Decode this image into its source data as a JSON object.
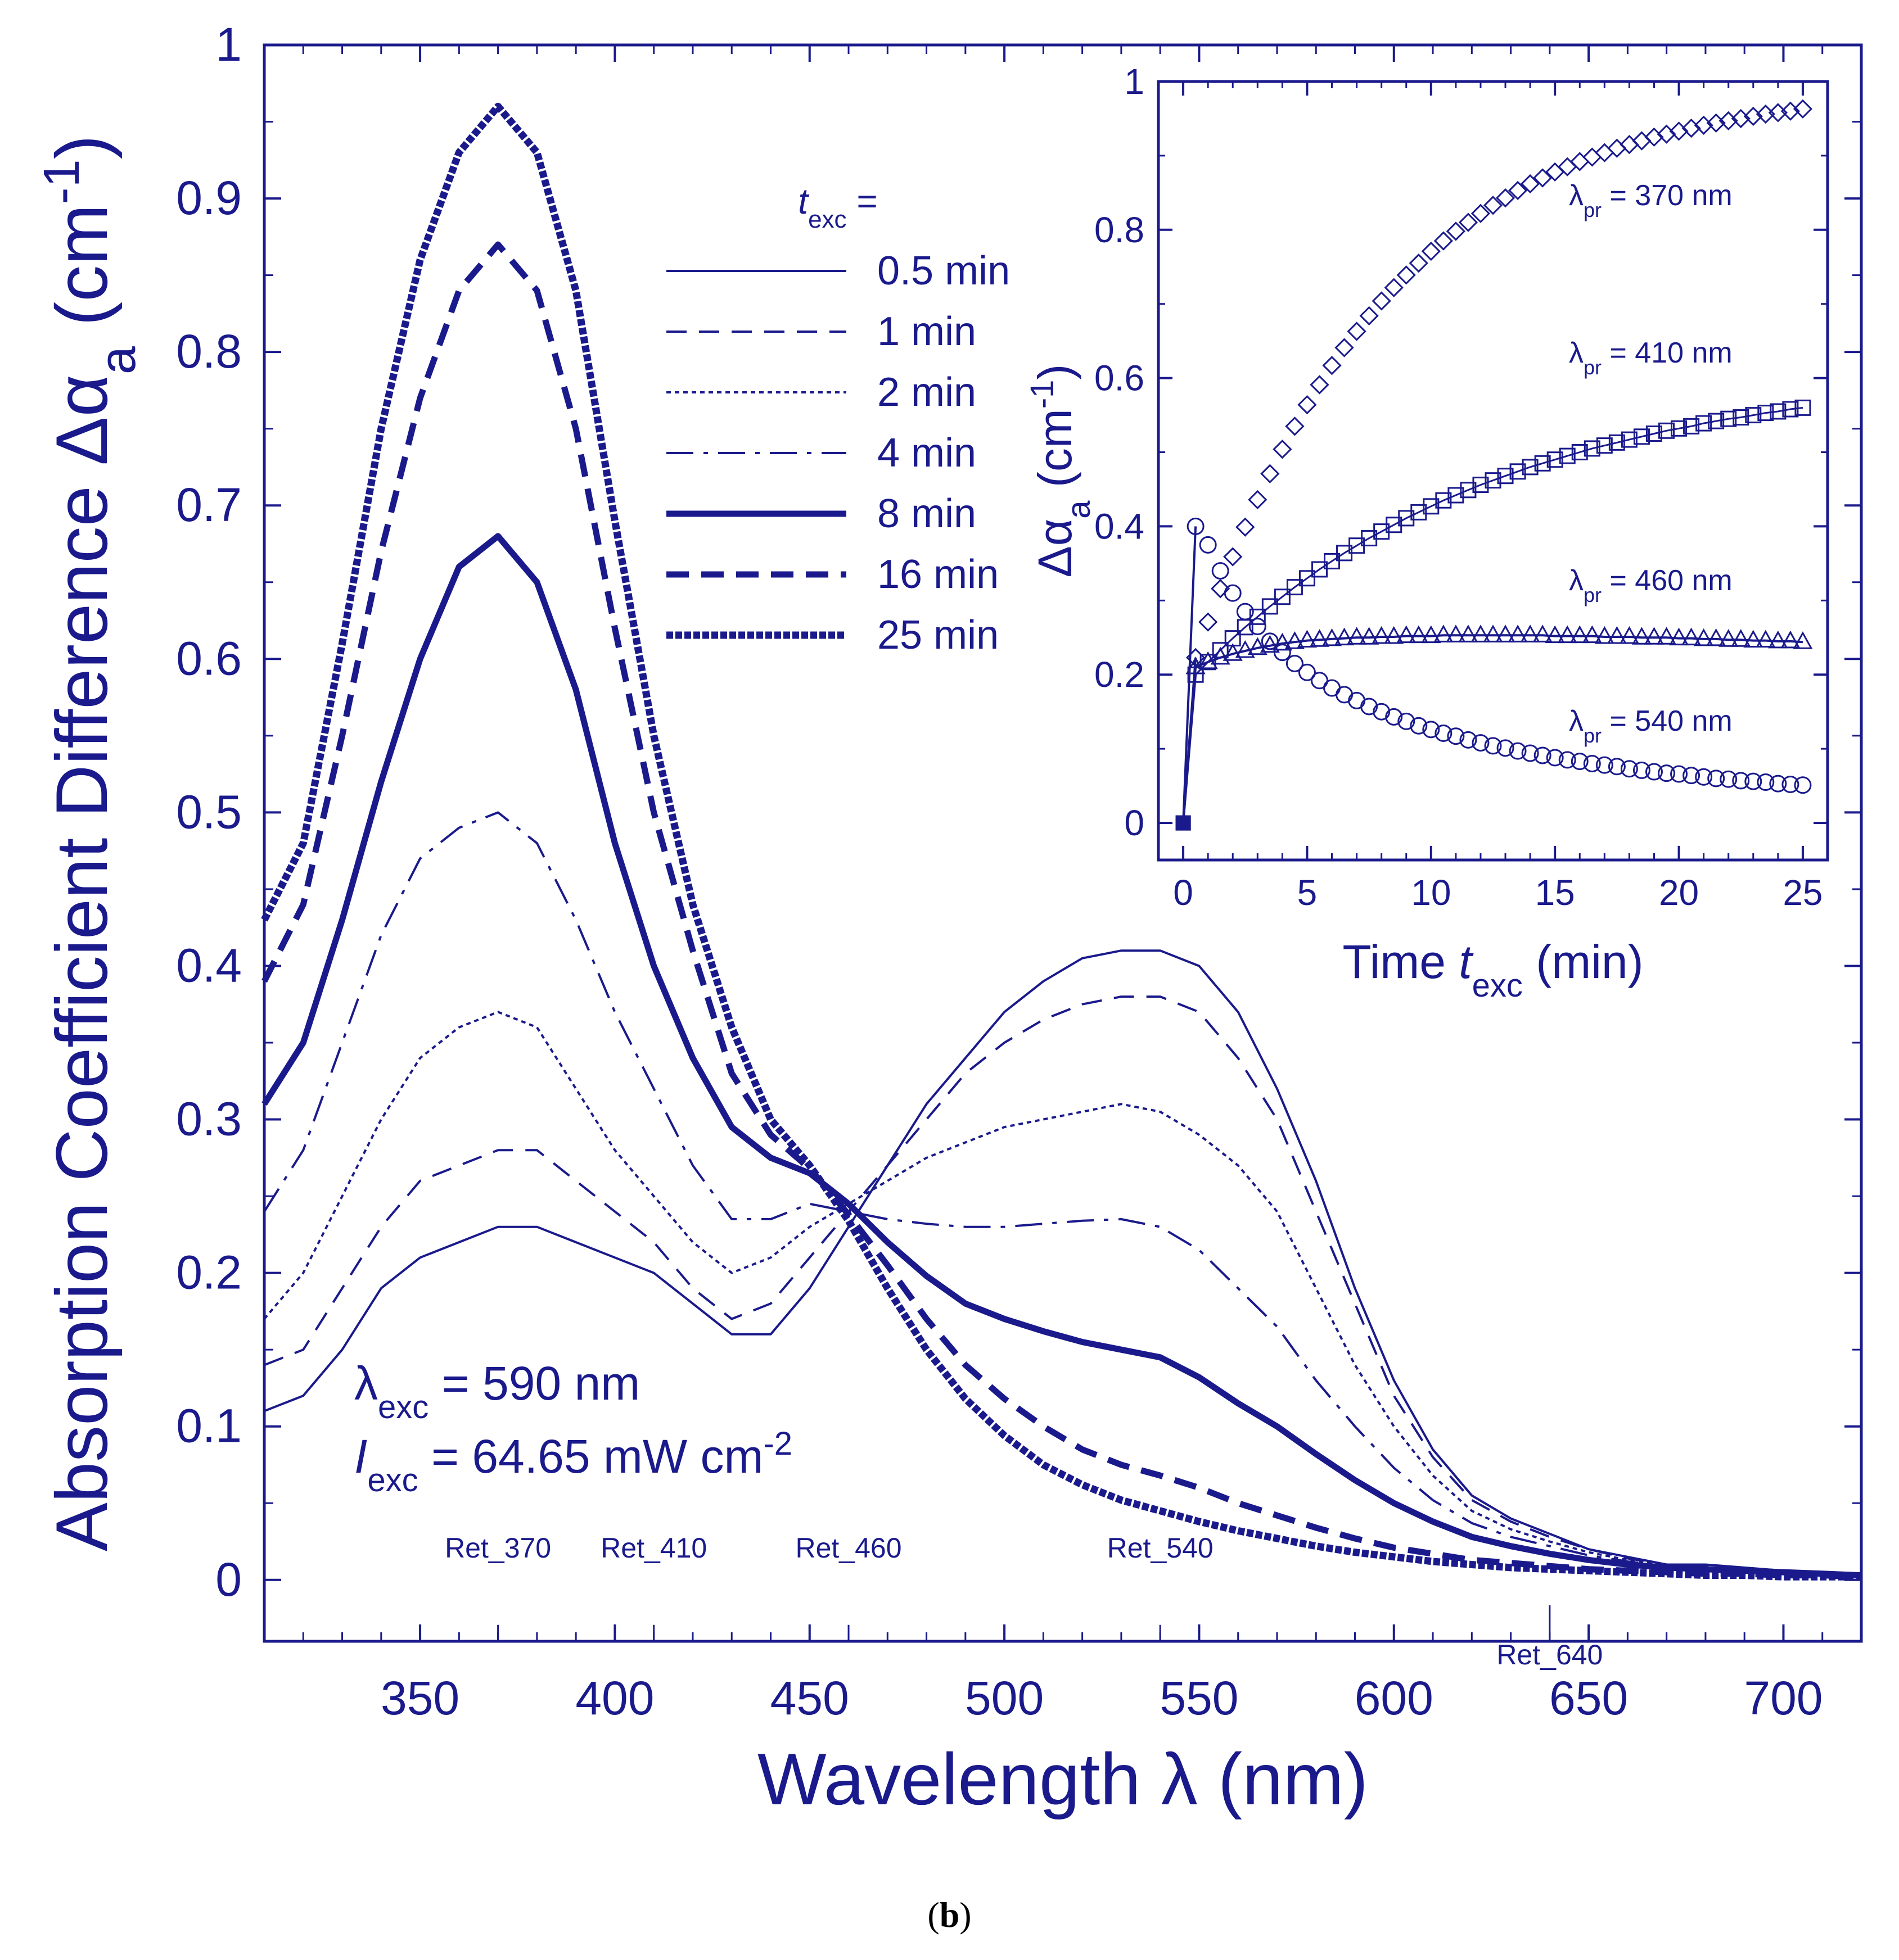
{
  "caption": {
    "open": "(",
    "letter": "b",
    "close": ")"
  },
  "colors": {
    "line": "#1a1a8c",
    "background": "#ffffff"
  },
  "chart_data": [
    {
      "type": "line",
      "id": "main",
      "xlabel": "Wavelength λ (nm)",
      "xlabel_parts": {
        "text": "Wavelength ",
        "symbol": "λ",
        "unit": " (nm)"
      },
      "ylabel": "Absorption Coefficient Difference Δα_a (cm^-1)",
      "ylabel_parts": {
        "text": "Absorption Coefficient Difference ",
        "symbol": "Δα",
        "sub": "a",
        "unit_open": " (cm",
        "sup": "-1",
        "unit_close": ")"
      },
      "xlim": [
        310,
        720
      ],
      "ylim": [
        -0.04,
        1.0
      ],
      "xticks": [
        350,
        400,
        450,
        500,
        550,
        600,
        650,
        700
      ],
      "yticks": [
        0,
        0.1,
        0.2,
        0.3,
        0.4,
        0.5,
        0.6,
        0.7,
        0.8,
        0.9,
        1
      ],
      "ytick_labels": [
        "0",
        "0.1",
        "0.2",
        "0.3",
        "0.4",
        "0.5",
        "0.6",
        "0.7",
        "0.8",
        "0.9",
        "1"
      ],
      "grid": false,
      "legend": {
        "title_symbol": "t",
        "title_sub": "exc",
        "title_eq": " =",
        "placement": "top-center"
      },
      "markers": [
        {
          "label": "Ret_370",
          "x": 370
        },
        {
          "label": "Ret_410",
          "x": 410
        },
        {
          "label": "Ret_460",
          "x": 460
        },
        {
          "label": "Ret_540",
          "x": 540
        },
        {
          "label": "Ret_640",
          "x": 640
        }
      ],
      "annotations": {
        "lambda_exc": {
          "symbol": "λ",
          "sub": "exc",
          "value": " = 590 nm"
        },
        "intensity_exc": {
          "symbol": "I",
          "sub": "exc",
          "value": " = 64.65 mW cm",
          "sup": "-2"
        }
      },
      "x": [
        310,
        320,
        330,
        340,
        350,
        360,
        370,
        380,
        390,
        400,
        410,
        420,
        430,
        440,
        450,
        460,
        470,
        480,
        490,
        500,
        510,
        520,
        530,
        540,
        550,
        560,
        570,
        580,
        590,
        600,
        610,
        620,
        630,
        640,
        650,
        660,
        670,
        680,
        690,
        700,
        710,
        720
      ],
      "series": [
        {
          "name": "0.5 min",
          "style": "thin-solid",
          "values": [
            0.11,
            0.12,
            0.15,
            0.19,
            0.21,
            0.22,
            0.23,
            0.23,
            0.22,
            0.21,
            0.2,
            0.18,
            0.16,
            0.16,
            0.19,
            0.23,
            0.27,
            0.31,
            0.34,
            0.37,
            0.39,
            0.405,
            0.41,
            0.41,
            0.4,
            0.37,
            0.32,
            0.26,
            0.19,
            0.13,
            0.085,
            0.055,
            0.04,
            0.03,
            0.02,
            0.015,
            0.01,
            0.01,
            0.008,
            0.006,
            0.005,
            0.004
          ]
        },
        {
          "name": "1 min",
          "style": "thin-dash",
          "values": [
            0.14,
            0.15,
            0.19,
            0.23,
            0.26,
            0.27,
            0.28,
            0.28,
            0.26,
            0.24,
            0.22,
            0.19,
            0.17,
            0.18,
            0.21,
            0.24,
            0.27,
            0.3,
            0.33,
            0.35,
            0.365,
            0.375,
            0.38,
            0.38,
            0.37,
            0.34,
            0.3,
            0.24,
            0.18,
            0.12,
            0.08,
            0.052,
            0.038,
            0.028,
            0.02,
            0.014,
            0.01,
            0.009,
            0.007,
            0.006,
            0.005,
            0.004
          ]
        },
        {
          "name": "2 min",
          "style": "thin-dot",
          "values": [
            0.17,
            0.2,
            0.25,
            0.3,
            0.34,
            0.36,
            0.37,
            0.36,
            0.32,
            0.28,
            0.25,
            0.22,
            0.2,
            0.21,
            0.23,
            0.245,
            0.26,
            0.275,
            0.285,
            0.295,
            0.3,
            0.305,
            0.31,
            0.305,
            0.29,
            0.27,
            0.24,
            0.19,
            0.14,
            0.1,
            0.068,
            0.045,
            0.033,
            0.025,
            0.018,
            0.013,
            0.01,
            0.008,
            0.007,
            0.006,
            0.005,
            0.004
          ]
        },
        {
          "name": "4 min",
          "style": "thin-dashdot",
          "values": [
            0.24,
            0.28,
            0.35,
            0.42,
            0.47,
            0.49,
            0.5,
            0.48,
            0.43,
            0.37,
            0.32,
            0.27,
            0.235,
            0.235,
            0.245,
            0.24,
            0.235,
            0.232,
            0.23,
            0.23,
            0.232,
            0.234,
            0.235,
            0.23,
            0.215,
            0.19,
            0.165,
            0.13,
            0.1,
            0.073,
            0.052,
            0.037,
            0.028,
            0.022,
            0.016,
            0.012,
            0.009,
            0.008,
            0.007,
            0.006,
            0.005,
            0.004
          ]
        },
        {
          "name": "8 min",
          "style": "thick-solid",
          "values": [
            0.31,
            0.35,
            0.43,
            0.52,
            0.6,
            0.66,
            0.68,
            0.65,
            0.58,
            0.48,
            0.4,
            0.34,
            0.295,
            0.275,
            0.265,
            0.245,
            0.22,
            0.198,
            0.18,
            0.17,
            0.162,
            0.155,
            0.15,
            0.145,
            0.132,
            0.115,
            0.1,
            0.082,
            0.065,
            0.05,
            0.038,
            0.028,
            0.022,
            0.017,
            0.013,
            0.01,
            0.008,
            0.007,
            0.006,
            0.005,
            0.004,
            0.003
          ]
        },
        {
          "name": "16 min",
          "style": "thick-dash",
          "values": [
            0.39,
            0.44,
            0.55,
            0.67,
            0.77,
            0.84,
            0.87,
            0.84,
            0.75,
            0.62,
            0.5,
            0.41,
            0.33,
            0.29,
            0.268,
            0.238,
            0.205,
            0.17,
            0.14,
            0.118,
            0.1,
            0.085,
            0.075,
            0.068,
            0.06,
            0.05,
            0.042,
            0.034,
            0.027,
            0.021,
            0.017,
            0.013,
            0.011,
            0.009,
            0.007,
            0.006,
            0.005,
            0.004,
            0.004,
            0.003,
            0.003,
            0.002
          ]
        },
        {
          "name": "25 min",
          "style": "thick-dot",
          "values": [
            0.43,
            0.48,
            0.61,
            0.75,
            0.86,
            0.93,
            0.96,
            0.93,
            0.84,
            0.69,
            0.55,
            0.44,
            0.36,
            0.3,
            0.27,
            0.234,
            0.19,
            0.15,
            0.118,
            0.094,
            0.075,
            0.062,
            0.052,
            0.045,
            0.038,
            0.032,
            0.027,
            0.022,
            0.018,
            0.015,
            0.012,
            0.01,
            0.008,
            0.007,
            0.006,
            0.005,
            0.004,
            0.003,
            0.003,
            0.002,
            0.002,
            0.002
          ]
        }
      ]
    },
    {
      "type": "scatter",
      "id": "inset",
      "xlabel": "Time t_exc (min)",
      "xlabel_parts": {
        "text": "Time ",
        "symbol": "t",
        "sub": "exc",
        "unit": " (min)"
      },
      "ylabel": "Δα_a (cm^-1)",
      "ylabel_parts": {
        "symbol": "Δα",
        "sub": "a",
        "unit_open": " (cm",
        "sup": "-1",
        "unit_close": ")"
      },
      "xlim": [
        -1,
        26
      ],
      "ylim": [
        -0.05,
        1.0
      ],
      "xticks": [
        0,
        5,
        10,
        15,
        20,
        25
      ],
      "yticks": [
        0,
        0.2,
        0.4,
        0.6,
        0.8,
        1
      ],
      "ytick_labels": [
        "0",
        "0.2",
        "0.4",
        "0.6",
        "0.8",
        "1"
      ],
      "grid": false,
      "x": [
        0,
        0.5,
        1,
        1.5,
        2,
        2.5,
        3,
        3.5,
        4,
        4.5,
        5,
        5.5,
        6,
        6.5,
        7,
        7.5,
        8,
        8.5,
        9,
        9.5,
        10,
        10.5,
        11,
        11.5,
        12,
        12.5,
        13,
        13.5,
        14,
        14.5,
        15,
        15.5,
        16,
        16.5,
        17,
        17.5,
        18,
        18.5,
        19,
        19.5,
        20,
        20.5,
        21,
        21.5,
        22,
        22.5,
        23,
        23.5,
        24,
        24.5,
        25
      ],
      "series": [
        {
          "name": "λ_pr = 370 nm",
          "label": {
            "symbol": "λ",
            "sub": "pr",
            "value": " = 370 nm"
          },
          "marker": "diamond",
          "values": [
            0,
            0.223,
            0.271,
            0.316,
            0.359,
            0.399,
            0.436,
            0.471,
            0.504,
            0.535,
            0.564,
            0.591,
            0.617,
            0.641,
            0.663,
            0.684,
            0.704,
            0.722,
            0.739,
            0.755,
            0.771,
            0.785,
            0.798,
            0.81,
            0.822,
            0.833,
            0.843,
            0.853,
            0.862,
            0.87,
            0.878,
            0.885,
            0.892,
            0.898,
            0.904,
            0.91,
            0.915,
            0.92,
            0.925,
            0.929,
            0.933,
            0.937,
            0.941,
            0.944,
            0.947,
            0.95,
            0.953,
            0.956,
            0.958,
            0.96,
            0.963
          ]
        },
        {
          "name": "λ_pr = 410 nm",
          "label": {
            "symbol": "λ",
            "sub": "pr",
            "value": " = 410 nm"
          },
          "marker": "square",
          "values": [
            0,
            0.2,
            0.217,
            0.233,
            0.249,
            0.264,
            0.278,
            0.292,
            0.305,
            0.318,
            0.33,
            0.342,
            0.353,
            0.364,
            0.374,
            0.384,
            0.393,
            0.402,
            0.411,
            0.419,
            0.427,
            0.435,
            0.442,
            0.449,
            0.456,
            0.462,
            0.468,
            0.474,
            0.48,
            0.485,
            0.49,
            0.495,
            0.5,
            0.505,
            0.509,
            0.513,
            0.517,
            0.521,
            0.525,
            0.529,
            0.532,
            0.535,
            0.539,
            0.542,
            0.545,
            0.547,
            0.55,
            0.553,
            0.555,
            0.558,
            0.56
          ]
        },
        {
          "name": "λ_pr = 460 nm",
          "label": {
            "symbol": "λ",
            "sub": "pr",
            "value": " = 460 nm"
          },
          "marker": "triangle",
          "values": [
            0,
            0.21,
            0.217,
            0.223,
            0.228,
            0.232,
            0.236,
            0.239,
            0.242,
            0.244,
            0.246,
            0.247,
            0.248,
            0.249,
            0.25,
            0.25,
            0.251,
            0.251,
            0.252,
            0.252,
            0.252,
            0.253,
            0.253,
            0.253,
            0.253,
            0.253,
            0.253,
            0.253,
            0.253,
            0.253,
            0.252,
            0.252,
            0.252,
            0.252,
            0.251,
            0.251,
            0.251,
            0.25,
            0.25,
            0.25,
            0.249,
            0.249,
            0.248,
            0.248,
            0.247,
            0.247,
            0.246,
            0.246,
            0.245,
            0.245,
            0.244
          ]
        },
        {
          "name": "λ_pr = 540 nm",
          "label": {
            "symbol": "λ",
            "sub": "pr",
            "value": " = 540 nm"
          },
          "marker": "circle",
          "values": [
            0,
            0.4,
            0.375,
            0.34,
            0.31,
            0.285,
            0.265,
            0.245,
            0.23,
            0.215,
            0.203,
            0.192,
            0.182,
            0.173,
            0.165,
            0.157,
            0.15,
            0.143,
            0.137,
            0.131,
            0.126,
            0.121,
            0.117,
            0.112,
            0.108,
            0.104,
            0.101,
            0.097,
            0.094,
            0.091,
            0.088,
            0.085,
            0.083,
            0.08,
            0.078,
            0.076,
            0.073,
            0.071,
            0.069,
            0.067,
            0.066,
            0.064,
            0.062,
            0.06,
            0.059,
            0.057,
            0.056,
            0.055,
            0.053,
            0.052,
            0.051
          ]
        }
      ]
    }
  ]
}
